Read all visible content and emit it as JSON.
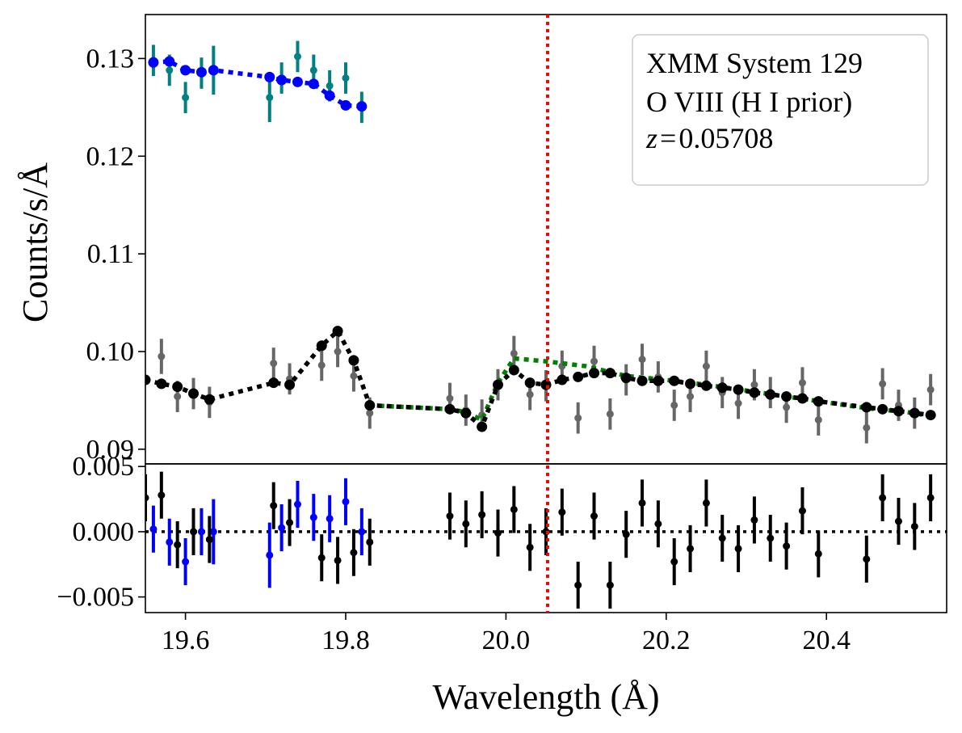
{
  "chart_data": {
    "type": "line",
    "xlabel": "Wavelength (Å)",
    "xlim": [
      19.55,
      20.55
    ],
    "xticks": [
      {
        "value": 19.6,
        "label": "19.6"
      },
      {
        "value": 19.8,
        "label": "19.8"
      },
      {
        "value": 20.0,
        "label": "20.0"
      },
      {
        "value": 20.2,
        "label": "20.2"
      },
      {
        "value": 20.4,
        "label": "20.4"
      }
    ],
    "marker_line": {
      "x": 20.052,
      "color": "#ff0000",
      "style": "dotted"
    },
    "legend": {
      "lines": [
        "XMM System 129",
        "O VIII (H I prior)"
      ],
      "z_symbol": "z",
      "z_equals": "=",
      "z_value": "0.05708",
      "location": "top-right"
    },
    "top_panel": {
      "ylabel": "Counts/s/Å",
      "ylim": [
        0.0885,
        0.1345
      ],
      "yticks": [
        {
          "value": 0.09,
          "label": "0.09"
        },
        {
          "value": 0.1,
          "label": "0.10"
        },
        {
          "value": 0.11,
          "label": "0.11"
        },
        {
          "value": 0.12,
          "label": "0.12"
        },
        {
          "value": 0.13,
          "label": "0.13"
        }
      ],
      "series": [
        {
          "name": "teal data (upper segment)",
          "color": "#008080",
          "kind": "errorbar",
          "points": [
            {
              "x": 19.56,
              "y": 0.1298,
              "err": 0.0016
            },
            {
              "x": 19.58,
              "y": 0.1288,
              "err": 0.0016
            },
            {
              "x": 19.6,
              "y": 0.126,
              "err": 0.0016
            },
            {
              "x": 19.62,
              "y": 0.1285,
              "err": 0.0016
            },
            {
              "x": 19.635,
              "y": 0.1288,
              "err": 0.0025
            },
            {
              "x": 19.705,
              "y": 0.126,
              "err": 0.0025
            },
            {
              "x": 19.72,
              "y": 0.128,
              "err": 0.0016
            },
            {
              "x": 19.74,
              "y": 0.1302,
              "err": 0.0016
            },
            {
              "x": 19.76,
              "y": 0.1288,
              "err": 0.0016
            },
            {
              "x": 19.78,
              "y": 0.1272,
              "err": 0.0016
            },
            {
              "x": 19.8,
              "y": 0.128,
              "err": 0.0016
            },
            {
              "x": 19.82,
              "y": 0.125,
              "err": 0.0016
            }
          ]
        },
        {
          "name": "blue model (upper segment)",
          "color": "#0000ff",
          "kind": "dotted-line",
          "points": [
            {
              "x": 19.56,
              "y": 0.1296
            },
            {
              "x": 19.58,
              "y": 0.1297
            },
            {
              "x": 19.6,
              "y": 0.1288
            },
            {
              "x": 19.62,
              "y": 0.1286
            },
            {
              "x": 19.635,
              "y": 0.1288
            },
            {
              "x": 19.705,
              "y": 0.1281
            },
            {
              "x": 19.72,
              "y": 0.1278
            },
            {
              "x": 19.74,
              "y": 0.1276
            },
            {
              "x": 19.76,
              "y": 0.1274
            },
            {
              "x": 19.78,
              "y": 0.1262
            },
            {
              "x": 19.8,
              "y": 0.1252
            },
            {
              "x": 19.82,
              "y": 0.1251
            }
          ]
        },
        {
          "name": "grey data (lower segment)",
          "color": "#666666",
          "kind": "errorbar",
          "points": [
            {
              "x": 19.57,
              "y": 0.0995,
              "err": 0.0018
            },
            {
              "x": 19.59,
              "y": 0.0954,
              "err": 0.0016
            },
            {
              "x": 19.61,
              "y": 0.0957,
              "err": 0.0016
            },
            {
              "x": 19.63,
              "y": 0.0948,
              "err": 0.0016
            },
            {
              "x": 19.71,
              "y": 0.0988,
              "err": 0.0016
            },
            {
              "x": 19.73,
              "y": 0.0972,
              "err": 0.0016
            },
            {
              "x": 19.77,
              "y": 0.0986,
              "err": 0.0016
            },
            {
              "x": 19.79,
              "y": 0.1,
              "err": 0.0016
            },
            {
              "x": 19.81,
              "y": 0.0975,
              "err": 0.0016
            },
            {
              "x": 19.83,
              "y": 0.0937,
              "err": 0.0016
            },
            {
              "x": 19.93,
              "y": 0.0952,
              "err": 0.0016
            },
            {
              "x": 19.95,
              "y": 0.094,
              "err": 0.0016
            },
            {
              "x": 19.97,
              "y": 0.0935,
              "err": 0.0016
            },
            {
              "x": 19.99,
              "y": 0.0966,
              "err": 0.0016
            },
            {
              "x": 20.01,
              "y": 0.0998,
              "err": 0.0018
            },
            {
              "x": 20.03,
              "y": 0.0956,
              "err": 0.0016
            },
            {
              "x": 20.05,
              "y": 0.0965,
              "err": 0.0016
            },
            {
              "x": 20.07,
              "y": 0.0985,
              "err": 0.0016
            },
            {
              "x": 20.09,
              "y": 0.0932,
              "err": 0.0016
            },
            {
              "x": 20.11,
              "y": 0.099,
              "err": 0.0016
            },
            {
              "x": 20.13,
              "y": 0.0936,
              "err": 0.0016
            },
            {
              "x": 20.15,
              "y": 0.0971,
              "err": 0.0016
            },
            {
              "x": 20.17,
              "y": 0.0992,
              "err": 0.0016
            },
            {
              "x": 20.19,
              "y": 0.0974,
              "err": 0.0016
            },
            {
              "x": 20.21,
              "y": 0.0945,
              "err": 0.0016
            },
            {
              "x": 20.23,
              "y": 0.0954,
              "err": 0.0016
            },
            {
              "x": 20.25,
              "y": 0.0985,
              "err": 0.0016
            },
            {
              "x": 20.27,
              "y": 0.0958,
              "err": 0.0016
            },
            {
              "x": 20.29,
              "y": 0.0947,
              "err": 0.0016
            },
            {
              "x": 20.31,
              "y": 0.0966,
              "err": 0.0016
            },
            {
              "x": 20.33,
              "y": 0.0958,
              "err": 0.0016
            },
            {
              "x": 20.35,
              "y": 0.0943,
              "err": 0.0016
            },
            {
              "x": 20.37,
              "y": 0.0968,
              "err": 0.0016
            },
            {
              "x": 20.39,
              "y": 0.093,
              "err": 0.0016
            },
            {
              "x": 20.45,
              "y": 0.0922,
              "err": 0.0016
            },
            {
              "x": 20.47,
              "y": 0.0967,
              "err": 0.0016
            },
            {
              "x": 20.49,
              "y": 0.0945,
              "err": 0.0016
            },
            {
              "x": 20.51,
              "y": 0.0937,
              "err": 0.0016
            },
            {
              "x": 20.53,
              "y": 0.0961,
              "err": 0.0016
            }
          ]
        },
        {
          "name": "green model (lower segment)",
          "color": "#008000",
          "kind": "dotted-line",
          "points": [
            {
              "x": 19.83,
              "y": 0.0945
            },
            {
              "x": 19.93,
              "y": 0.0941
            },
            {
              "x": 19.95,
              "y": 0.0938
            },
            {
              "x": 19.97,
              "y": 0.093
            },
            {
              "x": 19.99,
              "y": 0.0968
            },
            {
              "x": 20.01,
              "y": 0.0993
            },
            {
              "x": 20.05,
              "y": 0.099
            },
            {
              "x": 20.1,
              "y": 0.0985
            },
            {
              "x": 20.15,
              "y": 0.0975
            },
            {
              "x": 20.2,
              "y": 0.0971
            },
            {
              "x": 20.25,
              "y": 0.0966
            },
            {
              "x": 20.3,
              "y": 0.096
            },
            {
              "x": 20.35,
              "y": 0.0954
            },
            {
              "x": 20.4,
              "y": 0.0948
            },
            {
              "x": 20.45,
              "y": 0.0942
            },
            {
              "x": 20.5,
              "y": 0.0938
            },
            {
              "x": 20.53,
              "y": 0.0934
            }
          ]
        },
        {
          "name": "black model (lower segment)",
          "color": "#000000",
          "kind": "dotted-line-markers",
          "points": [
            {
              "x": 19.55,
              "y": 0.0971
            },
            {
              "x": 19.57,
              "y": 0.0967
            },
            {
              "x": 19.59,
              "y": 0.0964
            },
            {
              "x": 19.61,
              "y": 0.0957
            },
            {
              "x": 19.63,
              "y": 0.0951
            },
            {
              "x": 19.71,
              "y": 0.0968
            },
            {
              "x": 19.73,
              "y": 0.0966
            },
            {
              "x": 19.77,
              "y": 0.1006
            },
            {
              "x": 19.79,
              "y": 0.1021
            },
            {
              "x": 19.81,
              "y": 0.0991
            },
            {
              "x": 19.83,
              "y": 0.0945
            },
            {
              "x": 19.93,
              "y": 0.0941
            },
            {
              "x": 19.95,
              "y": 0.0937
            },
            {
              "x": 19.97,
              "y": 0.0923
            },
            {
              "x": 19.99,
              "y": 0.0966
            },
            {
              "x": 20.01,
              "y": 0.0981
            },
            {
              "x": 20.03,
              "y": 0.0968
            },
            {
              "x": 20.05,
              "y": 0.0966
            },
            {
              "x": 20.07,
              "y": 0.0971
            },
            {
              "x": 20.09,
              "y": 0.0974
            },
            {
              "x": 20.11,
              "y": 0.0978
            },
            {
              "x": 20.13,
              "y": 0.0978
            },
            {
              "x": 20.15,
              "y": 0.0973
            },
            {
              "x": 20.17,
              "y": 0.097
            },
            {
              "x": 20.19,
              "y": 0.097
            },
            {
              "x": 20.21,
              "y": 0.097
            },
            {
              "x": 20.23,
              "y": 0.0967
            },
            {
              "x": 20.25,
              "y": 0.0965
            },
            {
              "x": 20.27,
              "y": 0.0963
            },
            {
              "x": 20.29,
              "y": 0.0961
            },
            {
              "x": 20.31,
              "y": 0.0958
            },
            {
              "x": 20.33,
              "y": 0.0956
            },
            {
              "x": 20.35,
              "y": 0.0954
            },
            {
              "x": 20.37,
              "y": 0.0952
            },
            {
              "x": 20.39,
              "y": 0.0949
            },
            {
              "x": 20.45,
              "y": 0.0943
            },
            {
              "x": 20.47,
              "y": 0.0941
            },
            {
              "x": 20.49,
              "y": 0.0939
            },
            {
              "x": 20.51,
              "y": 0.0937
            },
            {
              "x": 20.53,
              "y": 0.0935
            }
          ]
        }
      ]
    },
    "bottom_panel": {
      "ylabel": "",
      "ylim": [
        -0.0062,
        0.0052
      ],
      "yticks": [
        {
          "value": 0.005,
          "label": "0.005"
        },
        {
          "value": 0.0,
          "label": "0.000"
        },
        {
          "value": -0.005,
          "label": "−0.005"
        }
      ],
      "zero_line": {
        "y": 0.0,
        "color": "#000000",
        "style": "dotted"
      },
      "series": [
        {
          "name": "blue residuals",
          "color": "#0000ff",
          "kind": "errorbar",
          "points": [
            {
              "x": 19.56,
              "y": 0.0002,
              "err": 0.0018
            },
            {
              "x": 19.58,
              "y": -0.0008,
              "err": 0.0018
            },
            {
              "x": 19.6,
              "y": -0.0023,
              "err": 0.0018
            },
            {
              "x": 19.62,
              "y": 0.0,
              "err": 0.0018
            },
            {
              "x": 19.635,
              "y": 0.0,
              "err": 0.0025
            },
            {
              "x": 19.705,
              "y": -0.0018,
              "err": 0.0025
            },
            {
              "x": 19.72,
              "y": 0.0003,
              "err": 0.0018
            },
            {
              "x": 19.74,
              "y": 0.0021,
              "err": 0.0018
            },
            {
              "x": 19.76,
              "y": 0.0011,
              "err": 0.0018
            },
            {
              "x": 19.78,
              "y": 0.001,
              "err": 0.0018
            },
            {
              "x": 19.8,
              "y": 0.0023,
              "err": 0.0018
            },
            {
              "x": 19.82,
              "y": 0.0,
              "err": 0.0018
            }
          ]
        },
        {
          "name": "black residuals",
          "color": "#000000",
          "kind": "errorbar",
          "points": [
            {
              "x": 19.55,
              "y": 0.0026,
              "err": 0.0018
            },
            {
              "x": 19.57,
              "y": 0.0028,
              "err": 0.0018
            },
            {
              "x": 19.59,
              "y": -0.001,
              "err": 0.0018
            },
            {
              "x": 19.61,
              "y": 0.0,
              "err": 0.0018
            },
            {
              "x": 19.63,
              "y": -0.0006,
              "err": 0.0018
            },
            {
              "x": 19.71,
              "y": 0.002,
              "err": 0.0018
            },
            {
              "x": 19.73,
              "y": 0.0007,
              "err": 0.0018
            },
            {
              "x": 19.77,
              "y": -0.002,
              "err": 0.0018
            },
            {
              "x": 19.79,
              "y": -0.0022,
              "err": 0.0018
            },
            {
              "x": 19.81,
              "y": -0.0016,
              "err": 0.0018
            },
            {
              "x": 19.83,
              "y": -0.0008,
              "err": 0.0018
            },
            {
              "x": 19.93,
              "y": 0.0012,
              "err": 0.0018
            },
            {
              "x": 19.95,
              "y": 0.0006,
              "err": 0.0018
            },
            {
              "x": 19.97,
              "y": 0.0013,
              "err": 0.0018
            },
            {
              "x": 19.99,
              "y": -0.0001,
              "err": 0.0018
            },
            {
              "x": 20.01,
              "y": 0.0017,
              "err": 0.0018
            },
            {
              "x": 20.03,
              "y": -0.0012,
              "err": 0.0018
            },
            {
              "x": 20.05,
              "y": 0.0,
              "err": 0.0018
            },
            {
              "x": 20.07,
              "y": 0.0015,
              "err": 0.0018
            },
            {
              "x": 20.09,
              "y": -0.0041,
              "err": 0.0018
            },
            {
              "x": 20.11,
              "y": 0.0012,
              "err": 0.0018
            },
            {
              "x": 20.13,
              "y": -0.0041,
              "err": 0.0018
            },
            {
              "x": 20.15,
              "y": -0.0002,
              "err": 0.0018
            },
            {
              "x": 20.17,
              "y": 0.0022,
              "err": 0.0018
            },
            {
              "x": 20.19,
              "y": 0.0006,
              "err": 0.0018
            },
            {
              "x": 20.21,
              "y": -0.0023,
              "err": 0.0018
            },
            {
              "x": 20.23,
              "y": -0.0013,
              "err": 0.0018
            },
            {
              "x": 20.25,
              "y": 0.0022,
              "err": 0.0018
            },
            {
              "x": 20.27,
              "y": -0.0005,
              "err": 0.0018
            },
            {
              "x": 20.29,
              "y": -0.0013,
              "err": 0.0018
            },
            {
              "x": 20.31,
              "y": 0.0009,
              "err": 0.0018
            },
            {
              "x": 20.33,
              "y": -0.0005,
              "err": 0.0018
            },
            {
              "x": 20.35,
              "y": -0.0011,
              "err": 0.0018
            },
            {
              "x": 20.37,
              "y": 0.0016,
              "err": 0.0018
            },
            {
              "x": 20.39,
              "y": -0.0017,
              "err": 0.0018
            },
            {
              "x": 20.45,
              "y": -0.0021,
              "err": 0.0018
            },
            {
              "x": 20.47,
              "y": 0.0026,
              "err": 0.0018
            },
            {
              "x": 20.49,
              "y": 0.0008,
              "err": 0.0018
            },
            {
              "x": 20.51,
              "y": 0.0004,
              "err": 0.0018
            },
            {
              "x": 20.53,
              "y": 0.0026,
              "err": 0.0018
            }
          ]
        }
      ]
    }
  }
}
